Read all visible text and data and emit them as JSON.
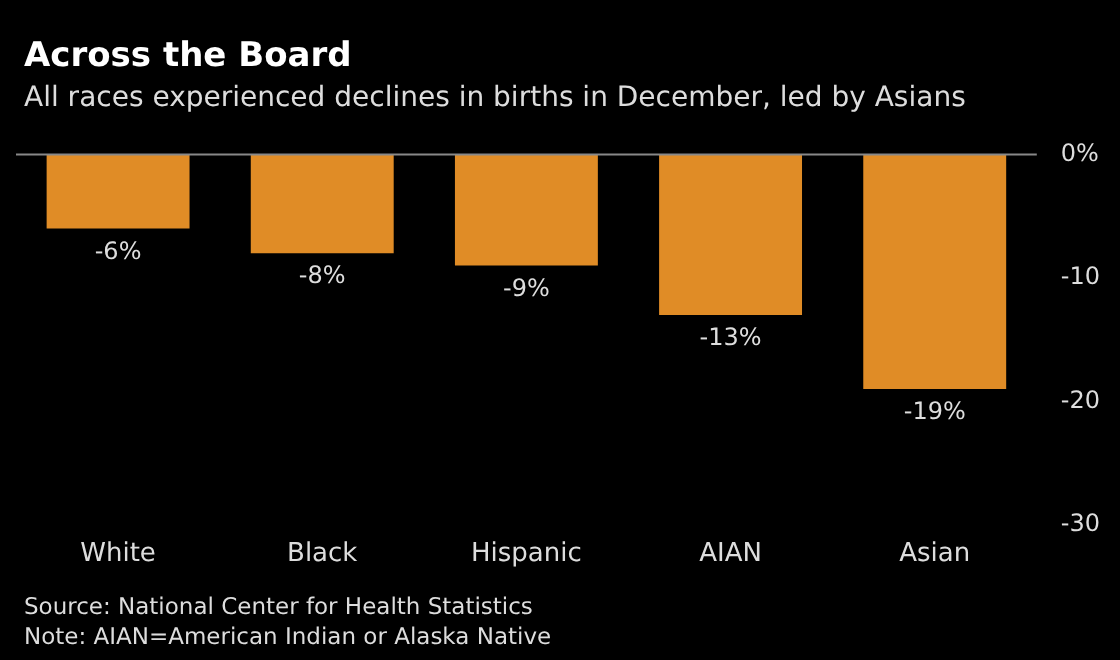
{
  "chart_data": {
    "type": "bar",
    "title": "Across the Board",
    "subtitle": "All races experienced declines in births in December, led by Asians",
    "categories": [
      "White",
      "Black",
      "Hispanic",
      "AIAN",
      "Asian"
    ],
    "values": [
      -6,
      -8,
      -9,
      -13,
      -19
    ],
    "color": "#e08c26",
    "value_labels": [
      "-6%",
      "-8%",
      "-9%",
      "-13%",
      "-19%"
    ],
    "ylim": [
      -30,
      0
    ],
    "yticks": [
      {
        "value": 0,
        "label": "0%"
      },
      -10,
      -20,
      -30
    ],
    "grid": false,
    "legend": false,
    "annotations": [
      "Source: National Center for Health Statistics",
      "Note: AIAN=American Indian or Alaska Native"
    ]
  }
}
